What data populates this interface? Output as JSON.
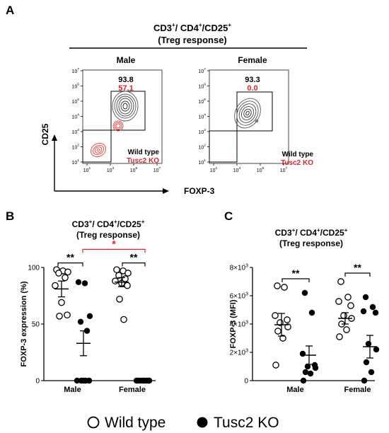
{
  "panels": {
    "A": {
      "letter": "A",
      "title_main": "CD3",
      "title_sup1": "+",
      "title_mid1": "/ CD4",
      "title_sup2": "+",
      "title_mid2": "/CD25",
      "title_sup3": "+",
      "title_sub": "(Treg response)",
      "ylabel": "CD25",
      "xlabel": "FOXP-3",
      "plots": [
        {
          "header": "Male",
          "wt_pct": "93.8",
          "ko_pct": "57.1",
          "legend_wt": "Wild type",
          "legend_ko": "Tusc2 KO"
        },
        {
          "header": "Female",
          "wt_pct": "93.3",
          "ko_pct": "0.0",
          "legend_wt": "Wild type",
          "legend_ko": "Tusc2 KO"
        }
      ],
      "tick_base": "10",
      "tick_exps": [
        "1",
        "3",
        "5",
        "7"
      ],
      "y_tick_exps": [
        "1",
        "2",
        "3",
        "4",
        "5",
        "6",
        "7"
      ]
    },
    "B": {
      "letter": "B",
      "sig_wt_ko": "**",
      "sig_between": "*",
      "sig_female": "**"
    },
    "C": {
      "letter": "C",
      "sig_male": "**",
      "sig_female": "**"
    }
  },
  "legend": {
    "wt": "Wild type",
    "ko": "Tusc2 KO"
  },
  "colors": {
    "ko_red": "#d9262c",
    "wt_stroke": "#000000",
    "ko_fill": "#000000"
  },
  "chart_data": [
    {
      "panel": "B",
      "type": "scatter",
      "title": "CD3+/ CD4+/CD25+ (Treg response)",
      "ylabel": "FOXP-3 expression (%)",
      "ylim": [
        0,
        100
      ],
      "yticks": [
        0,
        50,
        100
      ],
      "categories": [
        "Male",
        "Female"
      ],
      "series": [
        {
          "name": "Wild type",
          "group": "Male",
          "values": [
            98,
            97,
            96,
            95,
            91,
            84,
            69,
            58,
            57
          ],
          "mean": 81,
          "sem": 7
        },
        {
          "name": "Tusc2 KO",
          "group": "Male",
          "values": [
            87,
            86,
            57,
            52,
            44,
            0,
            0,
            0,
            0,
            0
          ],
          "mean": 33,
          "sem": 11
        },
        {
          "name": "Wild type",
          "group": "Female",
          "values": [
            98,
            97,
            95,
            93,
            90,
            88,
            86,
            84,
            72,
            54
          ],
          "mean": 87,
          "sem": 4
        },
        {
          "name": "Tusc2 KO",
          "group": "Female",
          "values": [
            0,
            0,
            0,
            0,
            0,
            0,
            0,
            0
          ],
          "mean": 0,
          "sem": 0
        }
      ]
    },
    {
      "panel": "C",
      "type": "scatter",
      "title": "CD3+/ CD4+/CD25+ (Treg response)",
      "ylabel": "FOXP-3 (MFI)",
      "ylim": [
        0,
        8000
      ],
      "yticks": [
        0,
        2000,
        4000,
        6000,
        8000
      ],
      "ytick_labels": [
        "0",
        "2×10",
        "4×10",
        "6×10",
        "8×10"
      ],
      "ytick_exp": "3",
      "categories": [
        "Male",
        "Female"
      ],
      "series": [
        {
          "name": "Wild type",
          "group": "Male",
          "values": [
            6700,
            6600,
            4600,
            4300,
            4100,
            3800,
            3500,
            3000,
            1100
          ],
          "mean": 3950,
          "sem": 800
        },
        {
          "name": "Tusc2 KO",
          "group": "Male",
          "values": [
            6200,
            4800,
            1900,
            1100,
            1000,
            900,
            600,
            500,
            0
          ],
          "mean": 1800,
          "sem": 650
        },
        {
          "name": "Wild type",
          "group": "Female",
          "values": [
            7000,
            5900,
            5600,
            5300,
            4600,
            4400,
            4000,
            3600,
            3100
          ],
          "mean": 4400,
          "sem": 400
        },
        {
          "name": "Tusc2 KO",
          "group": "Female",
          "values": [
            5900,
            5200,
            4900,
            4800,
            2600,
            2200,
            1300,
            600,
            0
          ],
          "mean": 2400,
          "sem": 800
        }
      ]
    }
  ]
}
